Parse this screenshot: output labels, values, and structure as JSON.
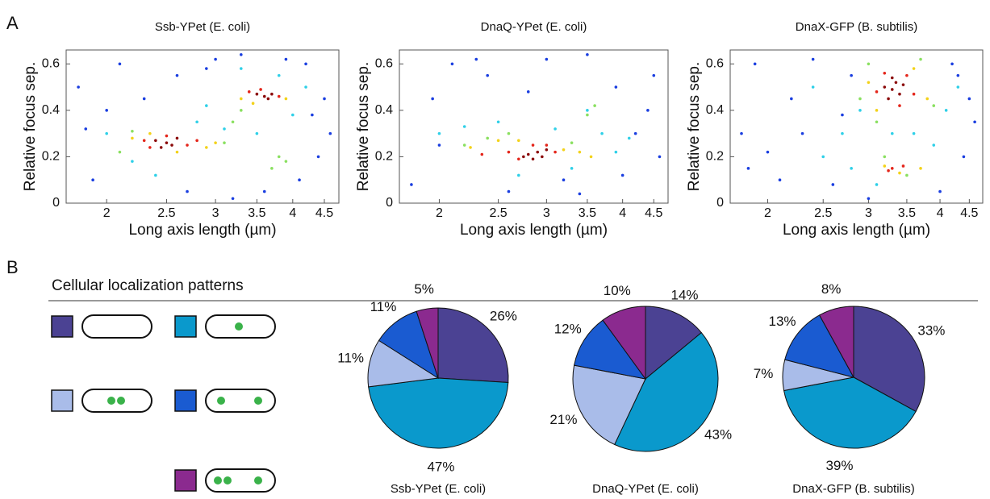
{
  "panel_labels": [
    "A",
    "B"
  ],
  "section_title": "Cellular localization patterns",
  "chart_data": [
    {
      "type": "scatter",
      "title": "Ssb-YPet (E. coli)",
      "xlabel": "Long axis length (µm)",
      "ylabel": "Relative focus sep.",
      "xscale": "log",
      "xlim": [
        1.72,
        4.75
      ],
      "xticks": [
        2,
        2.5,
        3,
        3.5,
        4,
        4.5
      ],
      "ylim": [
        0,
        0.66
      ],
      "yticks": [
        0,
        0.2,
        0.4,
        0.6
      ],
      "series": [
        {
          "color": "#1a3ee0",
          "x": [
            1.8,
            1.9,
            2.1,
            2.3,
            2.7,
            3.0,
            3.3,
            3.6,
            4.2,
            4.4,
            4.6,
            4.5,
            2.0,
            2.6,
            3.2,
            4.1,
            1.85,
            2.9,
            3.9,
            4.3
          ],
          "values": [
            0.5,
            0.1,
            0.6,
            0.45,
            0.05,
            0.62,
            0.64,
            0.05,
            0.6,
            0.2,
            0.3,
            0.45,
            0.4,
            0.55,
            0.02,
            0.1,
            0.32,
            0.58,
            0.62,
            0.38
          ]
        },
        {
          "color": "#2fd0e8",
          "x": [
            2.0,
            2.2,
            2.8,
            3.1,
            3.5,
            4.0,
            2.4,
            3.8,
            2.9,
            3.3,
            4.2
          ],
          "values": [
            0.3,
            0.18,
            0.35,
            0.32,
            0.3,
            0.38,
            0.12,
            0.55,
            0.42,
            0.58,
            0.5
          ]
        },
        {
          "color": "#8ae060",
          "x": [
            2.1,
            3.1,
            3.2,
            3.7,
            3.9,
            3.3,
            3.8,
            2.2
          ],
          "values": [
            0.22,
            0.26,
            0.35,
            0.15,
            0.18,
            0.4,
            0.2,
            0.31
          ]
        },
        {
          "color": "#f3d21a",
          "x": [
            2.2,
            2.9,
            3.0,
            2.6,
            3.3,
            3.9,
            3.45,
            2.35
          ],
          "values": [
            0.28,
            0.24,
            0.26,
            0.22,
            0.45,
            0.45,
            0.43,
            0.3
          ]
        },
        {
          "color": "#e4261b",
          "x": [
            2.3,
            2.35,
            2.7,
            2.8,
            2.5,
            3.4,
            3.8,
            3.55
          ],
          "values": [
            0.27,
            0.24,
            0.25,
            0.27,
            0.29,
            0.48,
            0.46,
            0.49
          ]
        },
        {
          "color": "#8b0a0a",
          "x": [
            2.4,
            2.5,
            2.55,
            2.6,
            2.45,
            3.5,
            3.6,
            3.7,
            3.65
          ],
          "values": [
            0.27,
            0.26,
            0.25,
            0.28,
            0.24,
            0.47,
            0.46,
            0.47,
            0.45
          ]
        }
      ]
    },
    {
      "type": "scatter",
      "title": "DnaQ-YPet (E. coli)",
      "xlabel": "Long axis length (µm)",
      "ylabel": "Relative focus sep.",
      "xscale": "log",
      "xlim": [
        1.72,
        4.75
      ],
      "xticks": [
        2,
        2.5,
        3,
        3.5,
        4,
        4.5
      ],
      "ylim": [
        0,
        0.66
      ],
      "yticks": [
        0,
        0.2,
        0.4,
        0.6
      ],
      "series": [
        {
          "color": "#1a3ee0",
          "x": [
            1.8,
            1.95,
            2.1,
            2.4,
            2.6,
            3.0,
            3.2,
            3.5,
            3.9,
            4.2,
            4.5,
            4.6,
            2.0,
            2.8,
            3.4,
            4.0,
            4.4,
            2.3
          ],
          "values": [
            0.08,
            0.45,
            0.6,
            0.55,
            0.05,
            0.62,
            0.1,
            0.64,
            0.5,
            0.3,
            0.55,
            0.2,
            0.25,
            0.48,
            0.04,
            0.12,
            0.4,
            0.62
          ]
        },
        {
          "color": "#2fd0e8",
          "x": [
            2.0,
            2.2,
            2.5,
            3.1,
            3.3,
            3.7,
            3.9,
            2.7,
            3.5,
            4.1
          ],
          "values": [
            0.3,
            0.33,
            0.35,
            0.32,
            0.15,
            0.3,
            0.22,
            0.12,
            0.4,
            0.28
          ]
        },
        {
          "color": "#8ae060",
          "x": [
            2.2,
            2.4,
            3.3,
            3.5,
            3.6,
            2.6
          ],
          "values": [
            0.25,
            0.28,
            0.26,
            0.38,
            0.42,
            0.3
          ]
        },
        {
          "color": "#f3d21a",
          "x": [
            2.25,
            2.5,
            3.2,
            3.4,
            2.7,
            3.55
          ],
          "values": [
            0.24,
            0.27,
            0.23,
            0.22,
            0.27,
            0.2
          ]
        },
        {
          "color": "#e4261b",
          "x": [
            2.35,
            2.6,
            2.7,
            3.1,
            3.0,
            2.85
          ],
          "values": [
            0.21,
            0.22,
            0.19,
            0.22,
            0.25,
            0.25
          ]
        },
        {
          "color": "#8b0a0a",
          "x": [
            2.8,
            2.9,
            2.95,
            3.0,
            2.75,
            2.85
          ],
          "values": [
            0.21,
            0.22,
            0.2,
            0.23,
            0.2,
            0.19
          ]
        }
      ]
    },
    {
      "type": "scatter",
      "title": "DnaX-GFP (B. subtilis)",
      "xlabel": "Long axis length (µm)",
      "ylabel": "Relative focus sep.",
      "xscale": "log",
      "xlim": [
        1.72,
        4.75
      ],
      "xticks": [
        2,
        2.5,
        3,
        3.5,
        4,
        4.5
      ],
      "ylim": [
        0,
        0.66
      ],
      "yticks": [
        0,
        0.2,
        0.4,
        0.6
      ],
      "series": [
        {
          "color": "#1a3ee0",
          "x": [
            1.8,
            1.9,
            2.1,
            2.2,
            2.4,
            2.6,
            2.8,
            3.0,
            4.2,
            4.4,
            4.6,
            4.5,
            2.0,
            2.3,
            4.0,
            4.3,
            1.85,
            2.7
          ],
          "values": [
            0.3,
            0.6,
            0.1,
            0.45,
            0.62,
            0.08,
            0.55,
            0.02,
            0.6,
            0.2,
            0.35,
            0.45,
            0.22,
            0.3,
            0.05,
            0.55,
            0.15,
            0.38
          ]
        },
        {
          "color": "#2fd0e8",
          "x": [
            2.5,
            2.7,
            2.9,
            3.1,
            3.6,
            3.9,
            4.1,
            2.8,
            3.3,
            4.3,
            2.4
          ],
          "values": [
            0.2,
            0.3,
            0.4,
            0.08,
            0.3,
            0.25,
            0.4,
            0.15,
            0.3,
            0.5,
            0.5
          ]
        },
        {
          "color": "#8ae060",
          "x": [
            2.9,
            3.0,
            3.7,
            3.9,
            3.2,
            3.5,
            3.1
          ],
          "values": [
            0.45,
            0.6,
            0.62,
            0.42,
            0.2,
            0.12,
            0.35
          ]
        },
        {
          "color": "#f3d21a",
          "x": [
            3.0,
            3.1,
            3.6,
            3.8,
            3.2,
            3.4,
            3.7
          ],
          "values": [
            0.52,
            0.4,
            0.58,
            0.45,
            0.16,
            0.13,
            0.15
          ]
        },
        {
          "color": "#e4261b",
          "x": [
            3.1,
            3.2,
            3.5,
            3.6,
            3.4,
            3.3,
            3.25,
            3.45
          ],
          "values": [
            0.48,
            0.56,
            0.55,
            0.47,
            0.42,
            0.15,
            0.14,
            0.16
          ]
        },
        {
          "color": "#8b0a0a",
          "x": [
            3.2,
            3.3,
            3.35,
            3.4,
            3.25,
            3.45,
            3.3
          ],
          "values": [
            0.5,
            0.49,
            0.52,
            0.47,
            0.45,
            0.51,
            0.54
          ]
        }
      ]
    },
    {
      "type": "pie",
      "title": "Ssb-YPet (E. coli)",
      "values": [
        26,
        47,
        11,
        11,
        5
      ],
      "value_labels": [
        "26%",
        "47%",
        "11%",
        "11%",
        "5%"
      ],
      "colors": [
        "#4b4293",
        "#0a99cc",
        "#a9bce9",
        "#1a5bd1",
        "#8b2a8f"
      ]
    },
    {
      "type": "pie",
      "title": "DnaQ-YPet (E. coli)",
      "values": [
        14,
        43,
        21,
        12,
        10
      ],
      "value_labels": [
        "14%",
        "43%",
        "21%",
        "12%",
        "10%"
      ],
      "colors": [
        "#4b4293",
        "#0a99cc",
        "#a9bce9",
        "#1a5bd1",
        "#8b2a8f"
      ]
    },
    {
      "type": "pie",
      "title": "DnaX-GFP (B. subtilis)",
      "values": [
        33,
        39,
        7,
        13,
        8
      ],
      "value_labels": [
        "33%",
        "39%",
        "7%",
        "13%",
        "8%"
      ],
      "colors": [
        "#4b4293",
        "#0a99cc",
        "#a9bce9",
        "#1a5bd1",
        "#8b2a8f"
      ]
    }
  ]
}
